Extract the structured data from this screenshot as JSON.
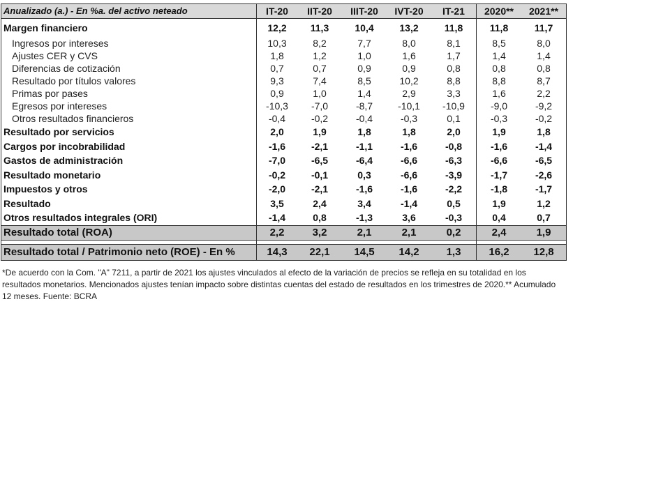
{
  "table": {
    "header_label": "Anualizado (a.) - En %a. del activo neteado",
    "columns": [
      "IT-20",
      "IIT-20",
      "IIIT-20",
      "IVT-20",
      "IT-21",
      "2020**",
      "2021**"
    ],
    "rows": [
      {
        "label": "Margen financiero",
        "style": "bold",
        "values": [
          "12,2",
          "11,3",
          "10,4",
          "13,2",
          "11,8",
          "11,8",
          "11,7"
        ]
      },
      {
        "label": "Ingresos por intereses",
        "style": "sub",
        "values": [
          "10,3",
          "8,2",
          "7,7",
          "8,0",
          "8,1",
          "8,5",
          "8,0"
        ]
      },
      {
        "label": "Ajustes CER y CVS",
        "style": "sub",
        "values": [
          "1,8",
          "1,2",
          "1,0",
          "1,6",
          "1,7",
          "1,4",
          "1,4"
        ]
      },
      {
        "label": "Diferencias de cotización",
        "style": "sub",
        "values": [
          "0,7",
          "0,7",
          "0,9",
          "0,9",
          "0,8",
          "0,8",
          "0,8"
        ]
      },
      {
        "label": "Resultado por títulos valores",
        "style": "sub",
        "values": [
          "9,3",
          "7,4",
          "8,5",
          "10,2",
          "8,8",
          "8,8",
          "8,7"
        ]
      },
      {
        "label": "Primas por pases",
        "style": "sub",
        "values": [
          "0,9",
          "1,0",
          "1,4",
          "2,9",
          "3,3",
          "1,6",
          "2,2"
        ]
      },
      {
        "label": "Egresos por intereses",
        "style": "sub",
        "values": [
          "-10,3",
          "-7,0",
          "-8,7",
          "-10,1",
          "-10,9",
          "-9,0",
          "-9,2"
        ]
      },
      {
        "label": "Otros resultados financieros",
        "style": "sub",
        "values": [
          "-0,4",
          "-0,2",
          "-0,4",
          "-0,3",
          "0,1",
          "-0,3",
          "-0,2"
        ]
      },
      {
        "label": "Resultado por servicios",
        "style": "bold",
        "values": [
          "2,0",
          "1,9",
          "1,8",
          "1,8",
          "2,0",
          "1,9",
          "1,8"
        ]
      },
      {
        "label": "Cargos por incobrabilidad",
        "style": "bold",
        "values": [
          "-1,6",
          "-2,1",
          "-1,1",
          "-1,6",
          "-0,8",
          "-1,6",
          "-1,4"
        ]
      },
      {
        "label": "Gastos de administración",
        "style": "bold",
        "values": [
          "-7,0",
          "-6,5",
          "-6,4",
          "-6,6",
          "-6,3",
          "-6,6",
          "-6,5"
        ]
      },
      {
        "label": "Resultado monetario",
        "style": "bold",
        "values": [
          "-0,2",
          "-0,1",
          "0,3",
          "-6,6",
          "-3,9",
          "-1,7",
          "-2,6"
        ]
      },
      {
        "label": "Impuestos  y otros",
        "style": "bold",
        "values": [
          "-2,0",
          "-2,1",
          "-1,6",
          "-1,6",
          "-2,2",
          "-1,8",
          "-1,7"
        ]
      },
      {
        "label": "Resultado",
        "style": "bold",
        "values": [
          "3,5",
          "2,4",
          "3,4",
          "-1,4",
          "0,5",
          "1,9",
          "1,2"
        ]
      },
      {
        "label": "Otros resultados integrales (ORI)",
        "style": "bold",
        "values": [
          "-1,4",
          "0,8",
          "-1,3",
          "3,6",
          "-0,3",
          "0,4",
          "0,7"
        ]
      }
    ],
    "total_roa": {
      "label": "Resultado total (ROA)",
      "values": [
        "2,2",
        "3,2",
        "2,1",
        "2,1",
        "0,2",
        "2,4",
        "1,9"
      ]
    },
    "total_roe": {
      "label": "Resultado total / Patrimonio neto (ROE) - En %",
      "values": [
        "14,3",
        "22,1",
        "14,5",
        "14,2",
        "1,3",
        "16,2",
        "12,8"
      ]
    }
  },
  "footnote": "*De acuerdo con la Com. \"A\" 7211, a partir de 2021 los ajustes vinculados al efecto de la variación de precios se refleja en su totalidad en los resultados monetarios. Mencionados ajustes tenían impacto sobre distintas cuentas del estado de resultados en los trimestres de 2020.** Acumulado 12 meses. Fuente: BCRA",
  "colors": {
    "header_bg": "#d9d9d9",
    "total_bg": "#c8c8c8",
    "border": "#333333"
  }
}
